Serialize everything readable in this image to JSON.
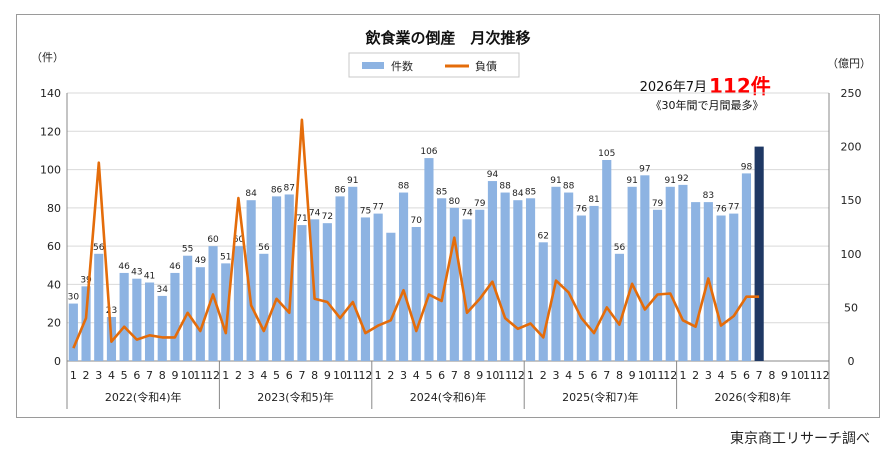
{
  "source_credit": "東京商工リサーチ調べ",
  "colors": {
    "bar": "#8db3e2",
    "bar_highlight": "#1f3864",
    "line": "#e46c0a",
    "callout": "#ff0000"
  },
  "chart_data": {
    "type": "bar",
    "title": "飲食業の倒産　月次推移",
    "left_axis_unit": "（件）",
    "right_axis_unit": "（億円）",
    "left_axis": {
      "ylim": [
        0,
        140
      ],
      "ticks": [
        0,
        20,
        40,
        60,
        80,
        100,
        120,
        140
      ]
    },
    "right_axis": {
      "ylim": [
        0,
        250
      ],
      "ticks": [
        0,
        50,
        100,
        150,
        200,
        250
      ]
    },
    "legend": {
      "position": "top-center",
      "entries": [
        "件数",
        "負債"
      ]
    },
    "callout": {
      "prefix": "2026年7月",
      "value": "112件",
      "note": "《30年間で月間最多》"
    },
    "month_labels": [
      "1",
      "2",
      "3",
      "4",
      "5",
      "6",
      "7",
      "8",
      "9",
      "10",
      "11",
      "12",
      "1",
      "2",
      "3",
      "4",
      "5",
      "6",
      "7",
      "8",
      "9",
      "10",
      "11",
      "12",
      "1",
      "2",
      "3",
      "4",
      "5",
      "6",
      "7",
      "8",
      "9",
      "10",
      "11",
      "12",
      "1",
      "2",
      "3",
      "4",
      "5",
      "6",
      "7",
      "8",
      "9",
      "10",
      "11",
      "12",
      "1",
      "2",
      "3",
      "4",
      "5",
      "6",
      "7",
      "8",
      "9",
      "10",
      "11",
      "12"
    ],
    "year_groups": [
      "2022(令和4)年",
      "2023(令和5)年",
      "2024(令和6)年",
      "2025(令和7)年",
      "2026(令和8)年"
    ],
    "series": [
      {
        "name": "件数",
        "axis": "left",
        "values": [
          30,
          39,
          56,
          23,
          46,
          43,
          41,
          34,
          46,
          55,
          49,
          60,
          51,
          60,
          84,
          56,
          86,
          87,
          71,
          74,
          72,
          86,
          91,
          75,
          77,
          67,
          88,
          70,
          106,
          85,
          80,
          74,
          79,
          94,
          88,
          84,
          85,
          62,
          91,
          88,
          76,
          81,
          105,
          56,
          91,
          97,
          79,
          91,
          92,
          83,
          83,
          76,
          77,
          98,
          112,
          null,
          null,
          null,
          null,
          null
        ],
        "labels": [
          "30",
          "39",
          "56",
          "23",
          "46",
          "43",
          "41",
          "34",
          "46",
          "55",
          "49",
          "60",
          "51",
          "60",
          "84",
          "56",
          "86",
          "87",
          "71",
          "74",
          "72",
          "86",
          "91",
          "75",
          "77",
          "",
          "88",
          "70",
          "106",
          "85",
          "80",
          "74",
          "79",
          "94",
          "88",
          "84",
          "85",
          "62",
          "91",
          "88",
          "76",
          "81",
          "105",
          "56",
          "91",
          "97",
          "79",
          "91",
          "92",
          "",
          "83",
          "76",
          "77",
          "98",
          "",
          "",
          "",
          "",
          "",
          ""
        ]
      },
      {
        "name": "負債",
        "axis": "right",
        "values": [
          12,
          40,
          185,
          18,
          32,
          20,
          24,
          22,
          22,
          45,
          28,
          62,
          26,
          152,
          52,
          28,
          58,
          45,
          225,
          58,
          55,
          40,
          55,
          26,
          33,
          38,
          66,
          28,
          62,
          56,
          115,
          45,
          58,
          74,
          40,
          30,
          35,
          22,
          75,
          64,
          40,
          26,
          50,
          34,
          72,
          48,
          62,
          63,
          38,
          32,
          77,
          33,
          42,
          60,
          60,
          null,
          null,
          null,
          null,
          null
        ]
      }
    ]
  }
}
